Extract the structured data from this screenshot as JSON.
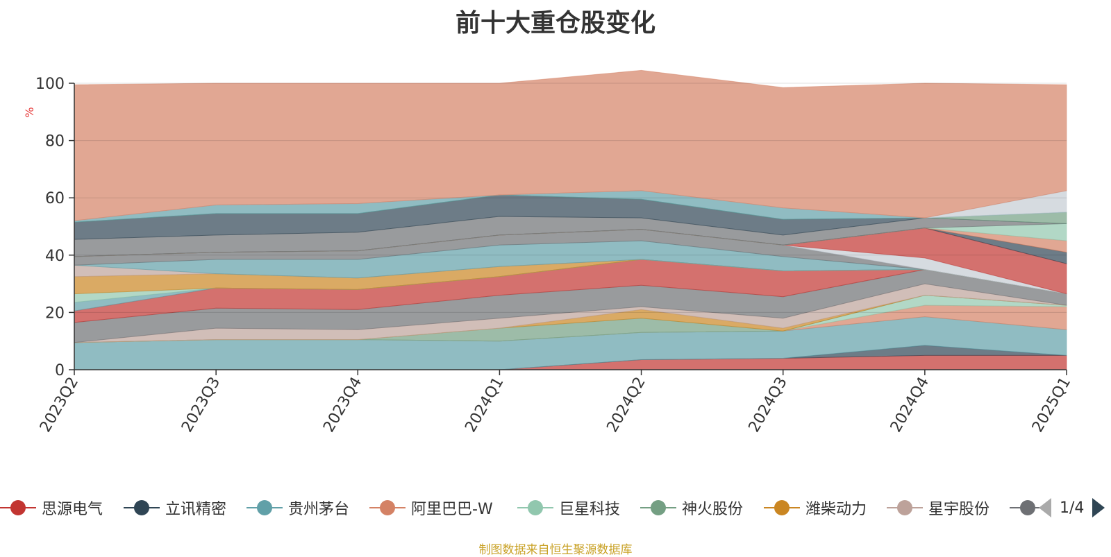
{
  "title": "前十大重仓股变化",
  "footer": "制图数据来自恒生聚源数据库",
  "pager": {
    "label": "1/4"
  },
  "legend": [
    {
      "name": "思源电气",
      "color": "#c23531"
    },
    {
      "name": "立讯精密",
      "color": "#2f4554"
    },
    {
      "name": "贵州茅台",
      "color": "#61a0a8"
    },
    {
      "name": "阿里巴巴-W",
      "color": "#d48265"
    },
    {
      "name": "巨星科技",
      "color": "#91c7ae"
    },
    {
      "name": "神火股份",
      "color": "#749f83"
    },
    {
      "name": "潍柴动力",
      "color": "#ca8622"
    },
    {
      "name": "星宇股份",
      "color": "#bda29a"
    },
    {
      "name": "",
      "color": "#6e7074"
    }
  ],
  "chart_data": {
    "type": "area",
    "stacked": true,
    "title": "前十大重仓股变化",
    "ylabel": "%",
    "ylim": [
      0,
      100
    ],
    "yticks": [
      0,
      20,
      40,
      60,
      80,
      100
    ],
    "categories": [
      "2023Q2",
      "2023Q3",
      "2023Q4",
      "2024Q1",
      "2024Q2",
      "2024Q3",
      "2024Q4",
      "2025Q1"
    ],
    "grid": true,
    "legend_position": "bottom",
    "series": [
      {
        "name": "思源电气",
        "color": "#c23531",
        "values": [
          0,
          0,
          0,
          0,
          3.5,
          4,
          5,
          5
        ]
      },
      {
        "name": "立讯精密",
        "color": "#2f4554",
        "values": [
          0,
          0,
          0,
          0,
          0,
          0,
          3.5,
          0
        ]
      },
      {
        "name": "贵州茅台",
        "color": "#61a0a8",
        "values": [
          9.5,
          10.5,
          10.5,
          10,
          9.5,
          9.5,
          10,
          9
        ]
      },
      {
        "name": "阿里巴巴-W",
        "color": "#d48265",
        "values": [
          0,
          0,
          0,
          0,
          0,
          0,
          4,
          8
        ]
      },
      {
        "name": "巨星科技",
        "color": "#91c7ae",
        "values": [
          0,
          0,
          0,
          0,
          0,
          0,
          3.5,
          0.5
        ]
      },
      {
        "name": "神火股份",
        "color": "#749f83",
        "values": [
          0,
          0,
          0,
          4.5,
          5,
          0,
          0,
          0
        ]
      },
      {
        "name": "潍柴动力",
        "color": "#ca8622",
        "values": [
          0,
          0,
          0,
          0,
          3,
          1,
          0,
          0
        ]
      },
      {
        "name": "星宇股份",
        "color": "#bda29a",
        "values": [
          0,
          4,
          3.5,
          3.5,
          1,
          3.5,
          4,
          0
        ]
      },
      {
        "name": "",
        "color": "#6e7074",
        "values": [
          7,
          7,
          7,
          8,
          7.5,
          7.5,
          5,
          4
        ]
      },
      {
        "name": "",
        "color": "#c23531",
        "values": [
          4,
          7,
          7,
          6.5,
          9,
          9,
          0,
          0
        ]
      },
      {
        "name": "",
        "color": "#61a0a8",
        "values": [
          3,
          0,
          0,
          0,
          0,
          0,
          0,
          0
        ]
      },
      {
        "name": "",
        "color": "#91c7ae",
        "values": [
          3,
          0,
          0,
          0,
          0,
          0,
          0,
          0
        ]
      },
      {
        "name": "",
        "color": "#ca8622",
        "values": [
          6,
          5,
          4,
          3.5,
          0,
          0,
          0,
          0
        ]
      },
      {
        "name": "",
        "color": "#bda29a",
        "values": [
          4,
          0,
          0,
          0,
          0,
          0,
          0,
          0
        ]
      },
      {
        "name": "",
        "color": "#61a0a8",
        "values": [
          0,
          5,
          6.5,
          7.5,
          6.5,
          5,
          0,
          0
        ]
      },
      {
        "name": "",
        "color": "#6e7074",
        "values": [
          3,
          2.5,
          3,
          3.5,
          4,
          4,
          0,
          0
        ]
      },
      {
        "name": "",
        "color": "#c4ccd3",
        "values": [
          0,
          0,
          0,
          0,
          0,
          0,
          4,
          0
        ]
      },
      {
        "name": "",
        "color": "#c23531",
        "values": [
          0,
          0,
          0,
          0,
          0,
          0,
          10.5,
          10.5
        ]
      },
      {
        "name": "",
        "color": "#2f4554",
        "values": [
          0,
          0,
          0,
          0,
          0,
          0,
          0,
          4
        ]
      },
      {
        "name": "",
        "color": "#d48265",
        "values": [
          0,
          0,
          0,
          0,
          0,
          0,
          0,
          4
        ]
      },
      {
        "name": "",
        "color": "#91c7ae",
        "values": [
          0,
          0,
          0,
          0,
          0,
          0,
          0,
          6
        ]
      },
      {
        "name": "",
        "color": "#6e7074",
        "values": [
          6,
          6,
          6.5,
          6.5,
          4,
          3.5,
          3.5,
          0
        ]
      },
      {
        "name": "",
        "color": "#2f4554",
        "values": [
          6,
          7.5,
          6.5,
          7.5,
          6.5,
          5.5,
          0,
          0
        ]
      },
      {
        "name": "",
        "color": "#749f83",
        "values": [
          0,
          0,
          0,
          0,
          0,
          0,
          0,
          4
        ]
      },
      {
        "name": "",
        "color": "#61a0a8",
        "values": [
          0.5,
          3,
          3.5,
          0,
          3,
          4,
          0,
          0
        ]
      },
      {
        "name": "",
        "color": "#c4ccd3",
        "values": [
          0,
          0,
          0,
          0,
          0,
          0,
          0,
          7.5
        ]
      },
      {
        "name": "",
        "color": "#d48265",
        "values": [
          47.5,
          42.5,
          42,
          39,
          42,
          42,
          47,
          37
        ]
      }
    ]
  }
}
